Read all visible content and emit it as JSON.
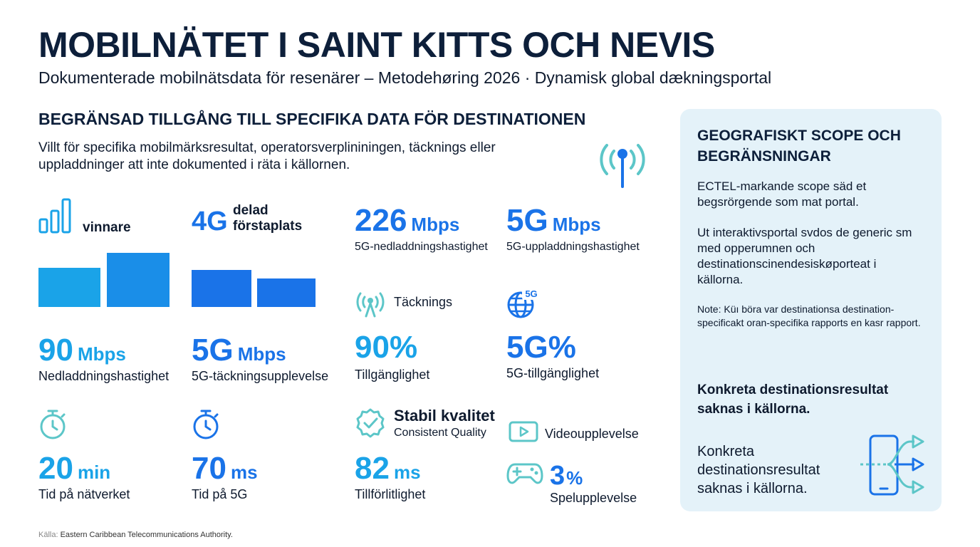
{
  "header": {
    "title": "MOBILNÄTET I SAINT KITTS OCH NEVIS",
    "subtitle": "Dokumenterade mobilnätsdata för resenärer – Metodehøring 2026 · Dynamisk global dækningsportal"
  },
  "section": {
    "heading": "BEGRÄNSAD TILLGÅNG TILL SPECIFIKA DATA FÖR DESTINATIONEN",
    "intro": "Villt för specifika mobilmärksresultat, operatorsverplininingen, täcknings eller uppladdninger att inte dokumented i räta i källornen."
  },
  "tiles": {
    "winner": {
      "label": "vinnare"
    },
    "shared": {
      "big": "4G",
      "label_line1": "delad",
      "label_line2": "förstaplats"
    },
    "dl5g": {
      "value": "226",
      "unit": "Mbps",
      "label": "5G-nedladdningshastighet"
    },
    "ul5g": {
      "value": "5G",
      "unit": "Mbps",
      "label": "5G-uppladdningshastighet"
    },
    "coverage": {
      "label": "Täcknings"
    },
    "avail": {
      "value": "90%",
      "label": "Tillgänglighet"
    },
    "avail5g": {
      "value": "5G%",
      "label": "5G-tillgänglighet",
      "badge": "5G"
    },
    "dl": {
      "value": "90",
      "unit": "Mbps",
      "label": "Nedladdningshastighet"
    },
    "exp5g": {
      "value": "5G",
      "unit": "Mbps",
      "label": "5G-täckningsupplevelse"
    },
    "time_net": {
      "value": "20",
      "unit": "min",
      "label": "Tid på nätverket"
    },
    "time_5g": {
      "value": "70",
      "unit": "ms",
      "label": "Tid på 5G"
    },
    "stable": {
      "title": "Stabil kvalitet",
      "subtitle": "Consistent Quality"
    },
    "reliab": {
      "value": "82",
      "unit": "ms",
      "label": "Tillförlitlighet"
    },
    "video": {
      "label": "Videoupplevelse"
    },
    "gaming": {
      "value": "3",
      "unit": "%",
      "label": "Spelupplevelse"
    }
  },
  "panel": {
    "heading": "GEOGRAFISKT SCOPE OCH BEGRÄNSNINGAR",
    "p1": "ECTEL-markande scope säd et begsrörgende som mat portal.",
    "p2": "Ut interaktivsportal svdos de generic sm med opperumnen och destinationscinendesiskøporteat i källorna.",
    "note": "Note: Küı böra var destinationsa destination-specificakt oran-specifika rapports en kasr rapport.",
    "strong": "Konkreta destinationsresultat saknas i källorna.",
    "big": "Konkreta destinationsresultat saknas i källorna."
  },
  "source": {
    "prefix": "Källa:",
    "text": "Eastern Caribbean Telecommunications Authority."
  },
  "colors": {
    "navy": "#0d1f3a",
    "blue": "#1a73e8",
    "cyan": "#1aa3e8",
    "teal": "#5cc6c8",
    "panel": "#e4f2f9"
  }
}
